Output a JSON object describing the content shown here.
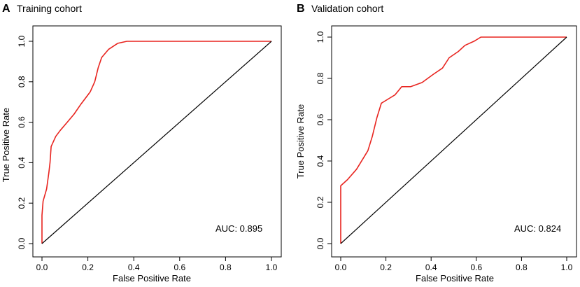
{
  "chart_data": [
    {
      "type": "line",
      "panel_letter": "A",
      "title": "Training cohort",
      "xlabel": "False Positive Rate",
      "ylabel": "True Positive Rate",
      "xlim": [
        0,
        1
      ],
      "ylim": [
        0,
        1
      ],
      "x_ticks": [
        "0.0",
        "0.2",
        "0.4",
        "0.6",
        "0.8",
        "1.0"
      ],
      "y_ticks": [
        "0.0",
        "0.2",
        "0.4",
        "0.6",
        "0.8",
        "1.0"
      ],
      "annotation": "AUC: 0.895",
      "curve_color": "#e8241f",
      "diagonal_color": "#000000",
      "series": [
        {
          "name": "ROC",
          "x": [
            0,
            0,
            0.005,
            0.02,
            0.03,
            0.035,
            0.04,
            0.06,
            0.08,
            0.11,
            0.14,
            0.17,
            0.21,
            0.23,
            0.245,
            0.26,
            0.29,
            0.33,
            0.37,
            1.0
          ],
          "y": [
            0,
            0.14,
            0.21,
            0.27,
            0.35,
            0.4,
            0.48,
            0.53,
            0.56,
            0.6,
            0.64,
            0.69,
            0.75,
            0.8,
            0.87,
            0.92,
            0.96,
            0.99,
            1.0,
            1.0
          ]
        },
        {
          "name": "Reference",
          "x": [
            0,
            1
          ],
          "y": [
            0,
            1
          ]
        }
      ]
    },
    {
      "type": "line",
      "panel_letter": "B",
      "title": "Validation cohort",
      "xlabel": "False Positive Rate",
      "ylabel": "True Positive Rate",
      "xlim": [
        0,
        1
      ],
      "ylim": [
        0,
        1
      ],
      "x_ticks": [
        "0.0",
        "0.2",
        "0.4",
        "0.6",
        "0.8",
        "1.0"
      ],
      "y_ticks": [
        "0.0",
        "0.2",
        "0.4",
        "0.6",
        "0.8",
        "1.0"
      ],
      "annotation": "AUC: 0.824",
      "curve_color": "#e8241f",
      "diagonal_color": "#000000",
      "series": [
        {
          "name": "ROC",
          "x": [
            0,
            0,
            0.03,
            0.07,
            0.12,
            0.14,
            0.16,
            0.18,
            0.21,
            0.24,
            0.27,
            0.31,
            0.36,
            0.41,
            0.45,
            0.48,
            0.52,
            0.55,
            0.59,
            0.62,
            1.0
          ],
          "y": [
            0,
            0.28,
            0.31,
            0.36,
            0.45,
            0.52,
            0.61,
            0.68,
            0.7,
            0.72,
            0.76,
            0.76,
            0.78,
            0.82,
            0.85,
            0.9,
            0.93,
            0.96,
            0.98,
            1.0,
            1.0
          ]
        },
        {
          "name": "Reference",
          "x": [
            0,
            1
          ],
          "y": [
            0,
            1
          ]
        }
      ]
    }
  ]
}
